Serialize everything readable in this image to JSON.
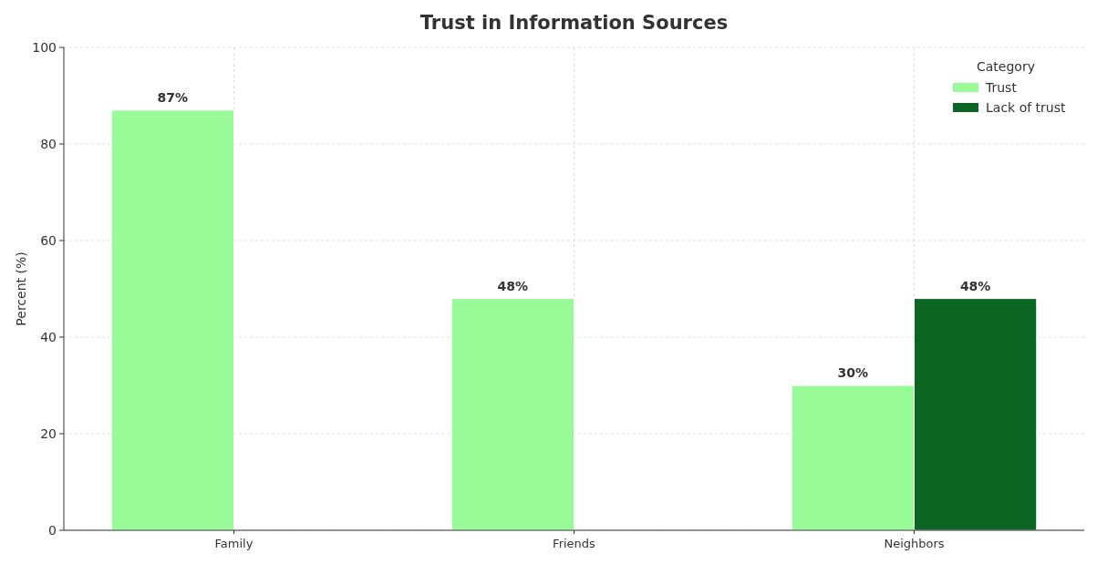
{
  "chart_data": {
    "type": "bar",
    "title": "Trust in Information Sources",
    "ylabel": "Percent (%)",
    "legend_title": "Category",
    "categories": [
      "Family",
      "Friends",
      "Neighbors"
    ],
    "series": [
      {
        "name": "Trust",
        "color": "#98fb98",
        "values": [
          87,
          48,
          30
        ],
        "value_labels": [
          "87%",
          "48%",
          "30%"
        ]
      },
      {
        "name": "Lack of trust",
        "color": "#0b6623",
        "values": [
          null,
          null,
          48
        ],
        "value_labels": [
          null,
          null,
          "48%"
        ]
      }
    ],
    "ylim": [
      0,
      100
    ],
    "yticks": [
      0,
      20,
      40,
      60,
      80,
      100
    ],
    "grid": true,
    "legend": "top right"
  }
}
